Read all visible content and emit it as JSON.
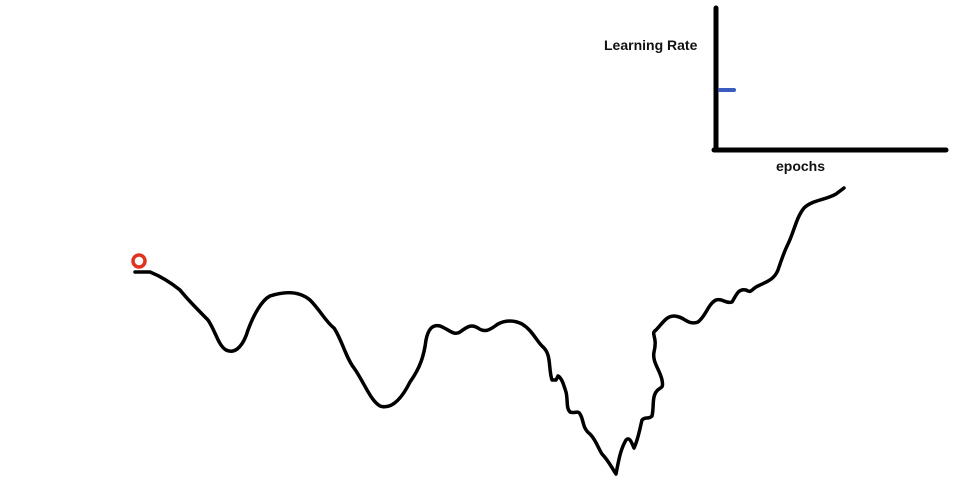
{
  "inset_chart": {
    "y_label": "Learning Rate",
    "x_label": "epochs"
  },
  "colors": {
    "stroke": "#000000",
    "learning_rate_mark": "#3a5bbf",
    "start_marker": "#e0341e",
    "background": "#ffffff"
  }
}
